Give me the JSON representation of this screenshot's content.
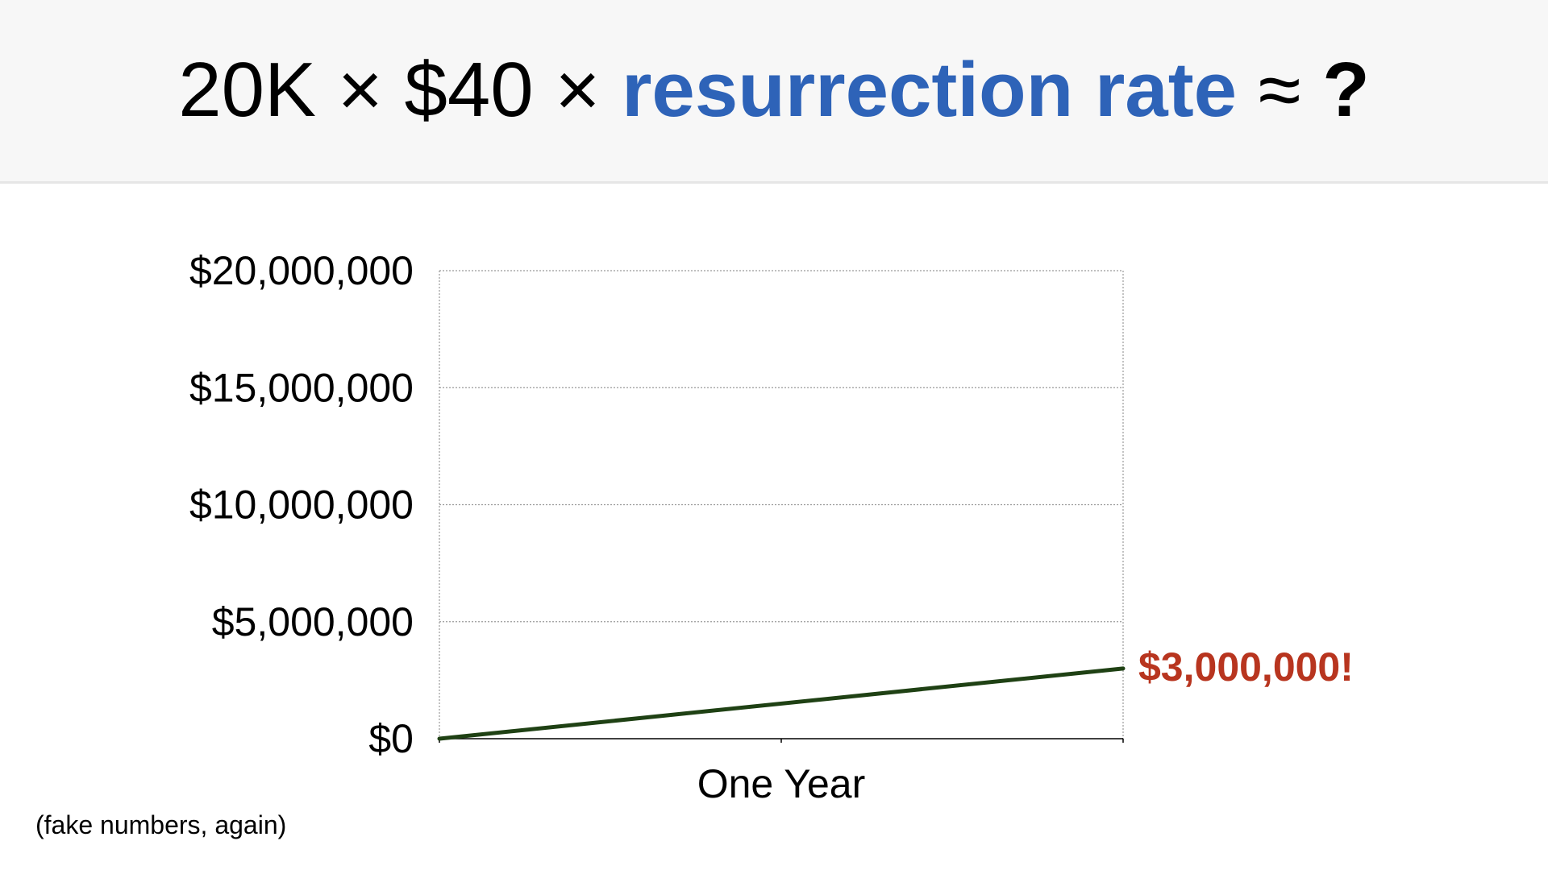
{
  "slide": {
    "title_parts": {
      "p1": "20K × $40 × ",
      "p2": "resurrection rate",
      "p3": " ≈ ",
      "p4": "?"
    },
    "footnote": "(fake numbers, again)"
  },
  "colors": {
    "highlight": "#2e63b8",
    "line": "#1f4114",
    "callout": "#b8351f",
    "grid": "#9a9a9a"
  },
  "chart_data": {
    "type": "line",
    "x": [
      "",
      "One Year"
    ],
    "series": [
      {
        "values": [
          0,
          3000000
        ]
      }
    ],
    "xlabel": "One Year",
    "ylim": [
      0,
      20000000
    ],
    "yticks": [
      0,
      5000000,
      10000000,
      15000000,
      20000000
    ],
    "ytick_labels": [
      "$0",
      "$5,000,000",
      "$10,000,000",
      "$15,000,000",
      "$20,000,000"
    ],
    "end_label": "$3,000,000!",
    "grid": true
  }
}
